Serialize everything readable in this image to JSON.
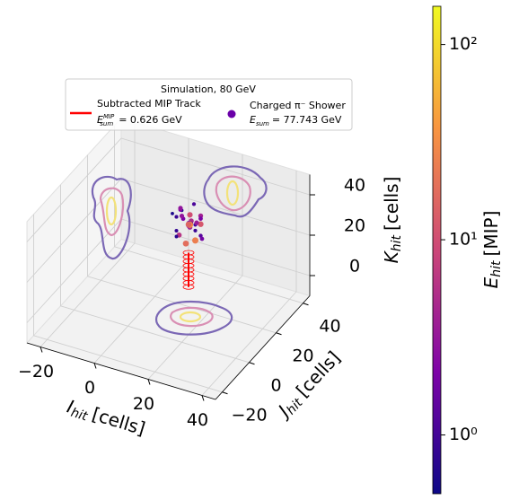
{
  "chart_data": {
    "type": "scatter3d",
    "legend_title": "Simulation, 80 GeV",
    "xlabel": {
      "symbol": "I",
      "sub": "hit",
      "unit": "[cells]"
    },
    "ylabel": {
      "symbol": "J",
      "sub": "hit",
      "unit": "[cells]"
    },
    "zlabel": {
      "symbol": "K",
      "sub": "hit",
      "unit": "[cells]"
    },
    "xlim": [
      -25,
      45
    ],
    "ylim": [
      -25,
      45
    ],
    "zlim": [
      -10,
      50
    ],
    "xticks": [
      {
        "value": -20,
        "label": "−20"
      },
      0,
      20,
      40
    ],
    "yticks": [
      {
        "value": -20,
        "label": "−20"
      },
      0,
      20,
      40
    ],
    "zticks": [
      0,
      20,
      40
    ],
    "grid": true,
    "series": [
      {
        "name": "Subtracted MIP Track",
        "color": "#ff0000",
        "energy_symbol": "E",
        "energy_sup": "MIP",
        "energy_sub": "sum",
        "energy_text": "= 0.626 GeV",
        "x": [
          10,
          10
        ],
        "y": [
          25,
          25
        ],
        "z": [
          -5,
          12
        ]
      },
      {
        "name": "Charged π⁻ Shower",
        "energy_symbol": "E",
        "energy_sub": "sum",
        "energy_text": "= 77.743 GeV",
        "x": [
          8,
          12,
          10,
          6,
          14,
          9,
          11,
          13,
          7,
          10,
          12,
          8,
          15,
          5,
          10,
          11,
          9,
          13,
          7,
          12,
          10,
          16,
          4,
          9,
          11,
          14,
          8,
          10,
          12,
          6
        ],
        "y": [
          25,
          23,
          27,
          24,
          26,
          22,
          28,
          24,
          26,
          25,
          21,
          29,
          24,
          26,
          23,
          27,
          20,
          25,
          22,
          30,
          26,
          22,
          25,
          28,
          24,
          27,
          23,
          25,
          26,
          27
        ],
        "z": [
          28,
          30,
          25,
          22,
          27,
          32,
          24,
          20,
          31,
          26,
          29,
          23,
          33,
          27,
          18,
          35,
          24,
          28,
          21,
          26,
          30,
          25,
          29,
          22,
          27,
          19,
          34,
          26,
          23,
          31
        ],
        "values": [
          2,
          5,
          1.2,
          0.8,
          12,
          3,
          1,
          25,
          0.6,
          8,
          2.5,
          1.5,
          4,
          0.9,
          18,
          1.1,
          6,
          3.5,
          0.7,
          2,
          10,
          1.3,
          0.6,
          4.5,
          30,
          1.8,
          2.2,
          15,
          0.9,
          3
        ]
      }
    ],
    "colorbar": {
      "label": {
        "symbol": "E",
        "sub": "hit",
        "unit": "[MIP]"
      },
      "log": true,
      "clim": [
        0.5,
        157
      ],
      "ticks": [
        {
          "value": 1,
          "label": "10⁰"
        },
        {
          "value": 10,
          "label": "10¹"
        },
        {
          "value": 100,
          "label": "10²"
        }
      ],
      "colormap": [
        "#0d0887",
        "#7e03a8",
        "#cc4778",
        "#f89540",
        "#f0f921"
      ]
    }
  }
}
